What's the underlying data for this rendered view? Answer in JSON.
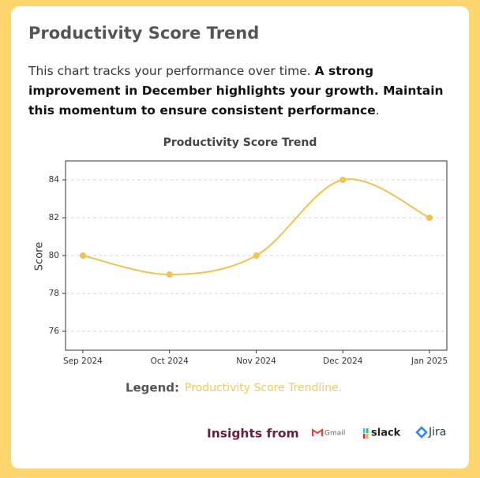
{
  "card": {
    "title": "Productivity Score Trend",
    "description": {
      "intro": "This chart tracks your performance over time. ",
      "highlight": "A strong improvement in December highlights your growth. Maintain this momentum to ensure consistent performance",
      "end": "."
    }
  },
  "chart_data": {
    "type": "line",
    "title": "Productivity Score Trend",
    "y_label": "Score",
    "categories": [
      "Sep 2024",
      "Oct 2024",
      "Nov 2024",
      "Dec 2024",
      "Jan 2025"
    ],
    "values": [
      80,
      79,
      80,
      84,
      82
    ],
    "color": "#f2c14e",
    "smooth": true,
    "ylim": [
      75,
      85
    ],
    "yticks": [
      76,
      78,
      80,
      82,
      84
    ],
    "grid": true
  },
  "legend": {
    "label": "Legend:",
    "text": "Productivity Score Trendline."
  },
  "footer": {
    "label": "Insights from",
    "sources": [
      "Gmail",
      "slack",
      "Jira"
    ]
  }
}
